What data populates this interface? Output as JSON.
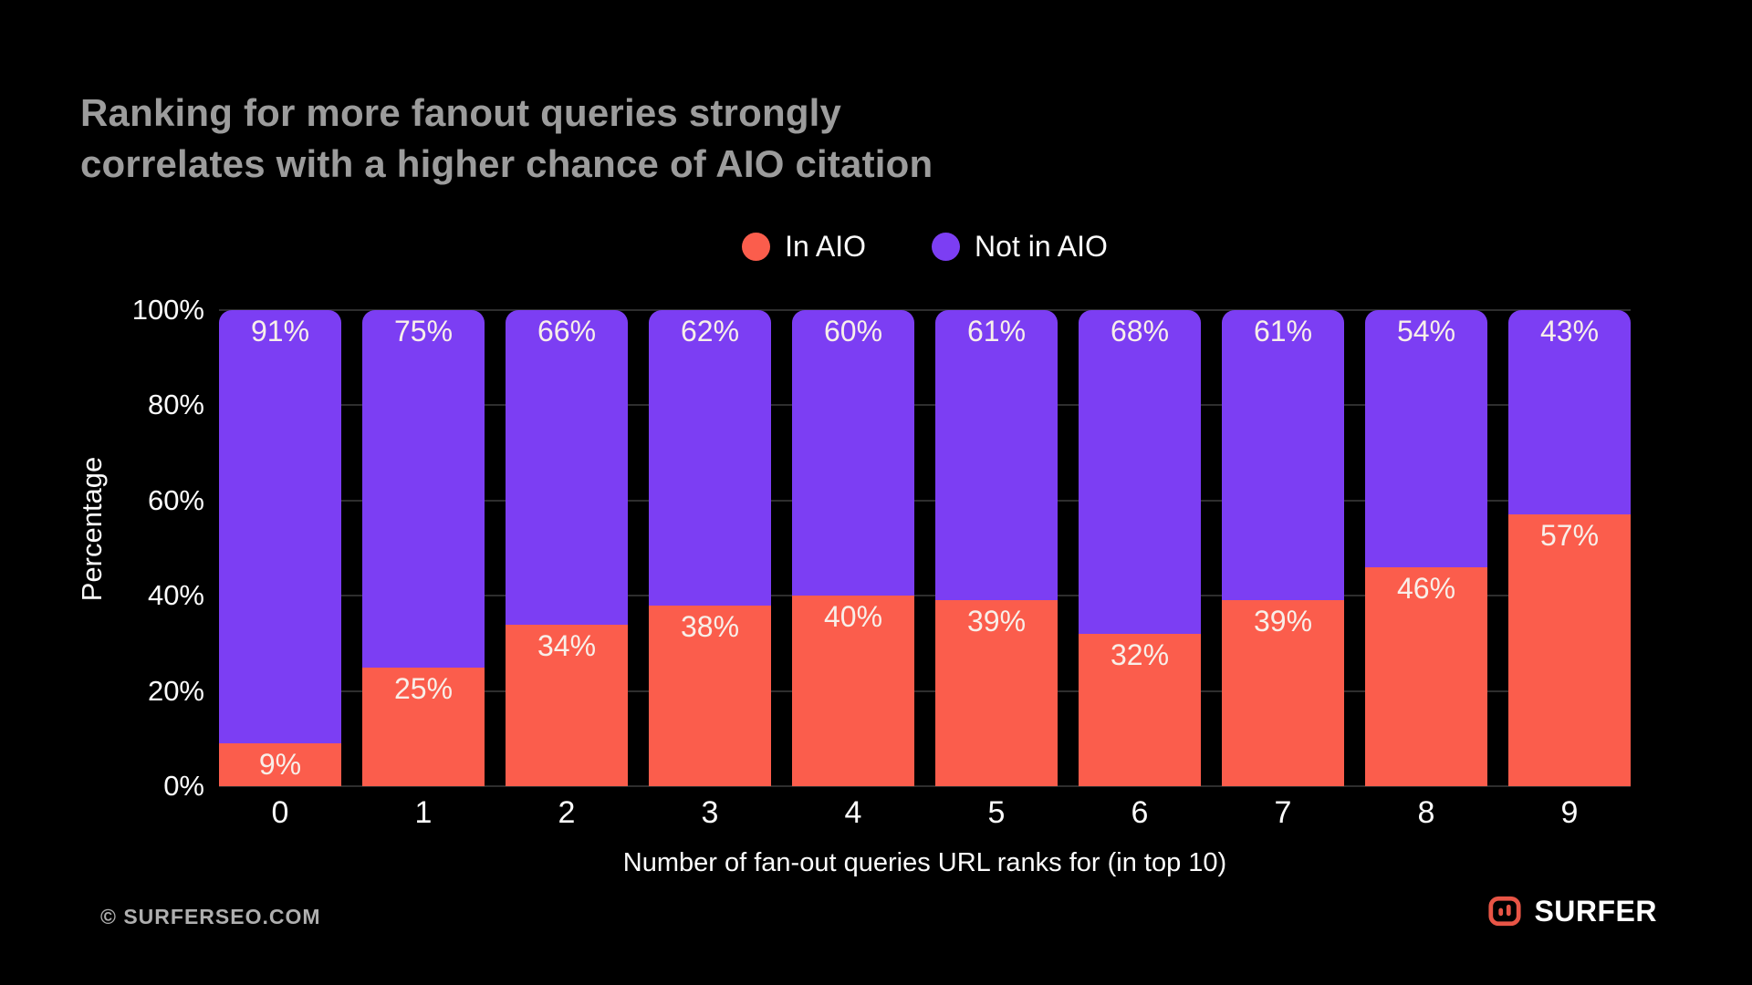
{
  "title": {
    "text": "Ranking for more fanout queries strongly\ncorrelates with a higher chance of AIO citation",
    "color": "#9C9C9C"
  },
  "chart_data": {
    "type": "bar",
    "stacked": true,
    "categories": [
      "0",
      "1",
      "2",
      "3",
      "4",
      "5",
      "6",
      "7",
      "8",
      "9"
    ],
    "series": [
      {
        "name": "In AIO",
        "color": "#FB5D4C",
        "values": [
          9,
          25,
          34,
          38,
          40,
          39,
          32,
          39,
          46,
          57
        ]
      },
      {
        "name": "Not in AIO",
        "color": "#7C3EF3",
        "values": [
          91,
          75,
          66,
          62,
          60,
          61,
          68,
          61,
          54,
          43
        ]
      }
    ],
    "value_suffix": "%",
    "xlabel": "Number of fan-out queries URL ranks for (in top 10)",
    "ylabel": "Percentage",
    "y_ticks": [
      0,
      20,
      40,
      60,
      80,
      100
    ],
    "ylim": [
      0,
      100
    ],
    "grid": "horizontal",
    "gridline_color": "#2E2E2E",
    "legend_position": "top",
    "background": "#000000",
    "bar_label_color": "#F8EFE9",
    "axis_text_color": "#FCFCFC"
  },
  "footer": {
    "copyright": "© SURFERSEO.COM",
    "brand": "SURFER",
    "brand_color": "#E85546"
  }
}
